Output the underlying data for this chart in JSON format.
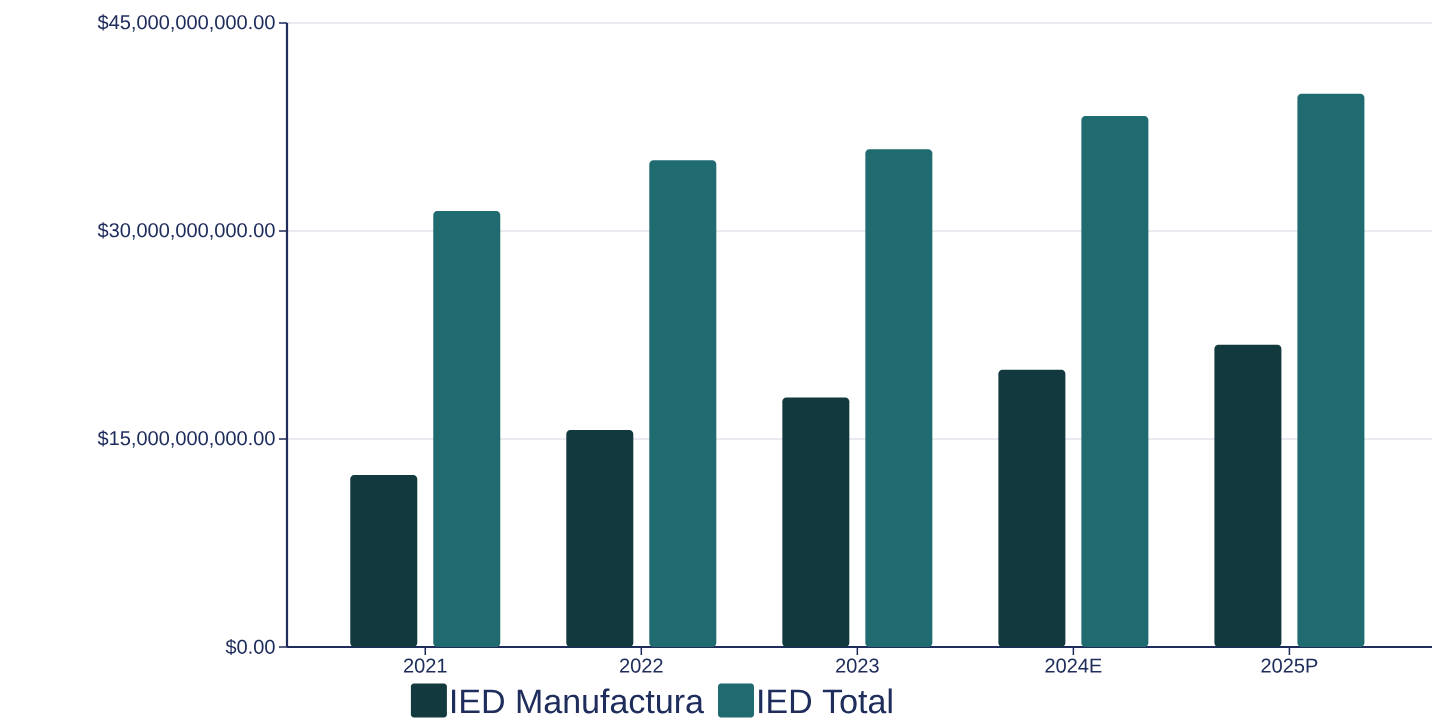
{
  "chart_data": {
    "type": "bar",
    "categories": [
      "2021",
      "2022",
      "2023",
      "2024E",
      "2025P"
    ],
    "series": [
      {
        "name": "IED Manufactura",
        "color": "#123a3e",
        "values": [
          12400000000,
          15650000000,
          18000000000,
          20000000000,
          21800000000
        ]
      },
      {
        "name": "IED Total",
        "color": "#1f6b70",
        "values": [
          31450000000,
          35100000000,
          35900000000,
          38300000000,
          39900000000
        ]
      }
    ],
    "ylim": [
      0,
      45000000000
    ],
    "yticks": [
      {
        "value": 0,
        "label": "$0.00"
      },
      {
        "value": 15000000000,
        "label": "$15,000,000,000.00"
      },
      {
        "value": 30000000000,
        "label": "$30,000,000,000.00"
      },
      {
        "value": 45000000000,
        "label": "$45,000,000,000.00"
      }
    ],
    "grid": "y",
    "legend": "bottom"
  }
}
